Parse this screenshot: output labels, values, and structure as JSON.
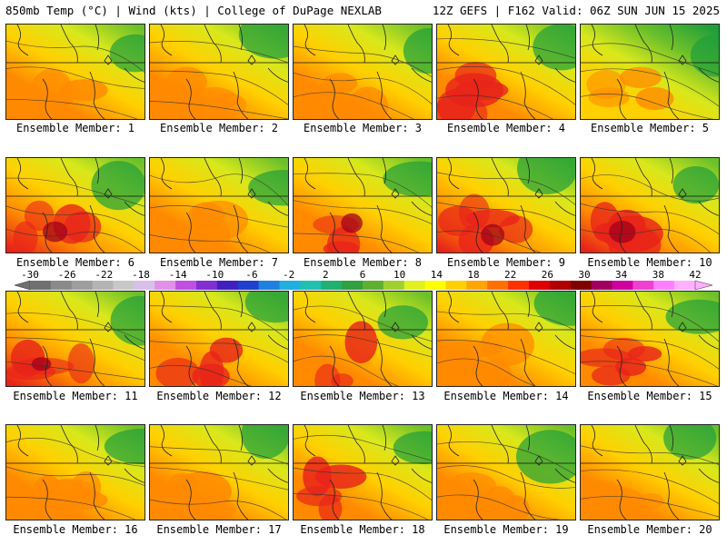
{
  "header": {
    "left_title": "850mb Temp (°C) | Wind (kts) | College of DuPage NEXLAB",
    "right_title": "12Z GEFS | F162 Valid: 06Z SUN JUN 15 2025"
  },
  "panels": [
    {
      "label": "Ensemble Member: 1",
      "heat": 0.55
    },
    {
      "label": "Ensemble Member: 2",
      "heat": 0.6
    },
    {
      "label": "Ensemble Member: 3",
      "heat": 0.5
    },
    {
      "label": "Ensemble Member: 4",
      "heat": 0.65
    },
    {
      "label": "Ensemble Member: 5",
      "heat": 0.25
    },
    {
      "label": "Ensemble Member: 6",
      "heat": 0.8
    },
    {
      "label": "Ensemble Member: 7",
      "heat": 0.55
    },
    {
      "label": "Ensemble Member: 8",
      "heat": 0.7
    },
    {
      "label": "Ensemble Member: 9",
      "heat": 0.75
    },
    {
      "label": "Ensemble Member: 10",
      "heat": 0.72
    },
    {
      "label": "Ensemble Member: 11",
      "heat": 0.72
    },
    {
      "label": "Ensemble Member: 12",
      "heat": 0.62
    },
    {
      "label": "Ensemble Member: 13",
      "heat": 0.65
    },
    {
      "label": "Ensemble Member: 14",
      "heat": 0.55
    },
    {
      "label": "Ensemble Member: 15",
      "heat": 0.62
    },
    {
      "label": "Ensemble Member: 16",
      "heat": 0.58
    },
    {
      "label": "Ensemble Member: 17",
      "heat": 0.6
    },
    {
      "label": "Ensemble Member: 18",
      "heat": 0.62
    },
    {
      "label": "Ensemble Member: 19",
      "heat": 0.5
    },
    {
      "label": "Ensemble Member: 20",
      "heat": 0.6
    }
  ],
  "colorbar": {
    "labels": [
      "-30",
      "-26",
      "-22",
      "-18",
      "-14",
      "-10",
      "-6",
      "-2",
      "2",
      "6",
      "10",
      "14",
      "18",
      "22",
      "26",
      "30",
      "34",
      "38",
      "42"
    ],
    "colors": [
      "#707070",
      "#8a8a8a",
      "#9e9e9e",
      "#b4b4b4",
      "#c8c8c8",
      "#d8c0e8",
      "#e090e8",
      "#c050e0",
      "#8030d0",
      "#4020c0",
      "#2040d0",
      "#2080e0",
      "#20b0e0",
      "#20c0b0",
      "#20b070",
      "#30a040",
      "#60b030",
      "#a0d030",
      "#e0f020",
      "#ffff00",
      "#ffd000",
      "#ffa500",
      "#ff7000",
      "#ff3000",
      "#e00000",
      "#b00000",
      "#800000",
      "#a00060",
      "#d000a0",
      "#f040d0",
      "#ff80ff",
      "#ffb0ff"
    ]
  },
  "palette": {
    "cold": "#1f9e3a",
    "cool": "#6cc02a",
    "mild": "#d8e81c",
    "warm": "#ffd000",
    "hot": "#ff8a00",
    "veryhot": "#e8231a",
    "extreme": "#a3001a"
  }
}
